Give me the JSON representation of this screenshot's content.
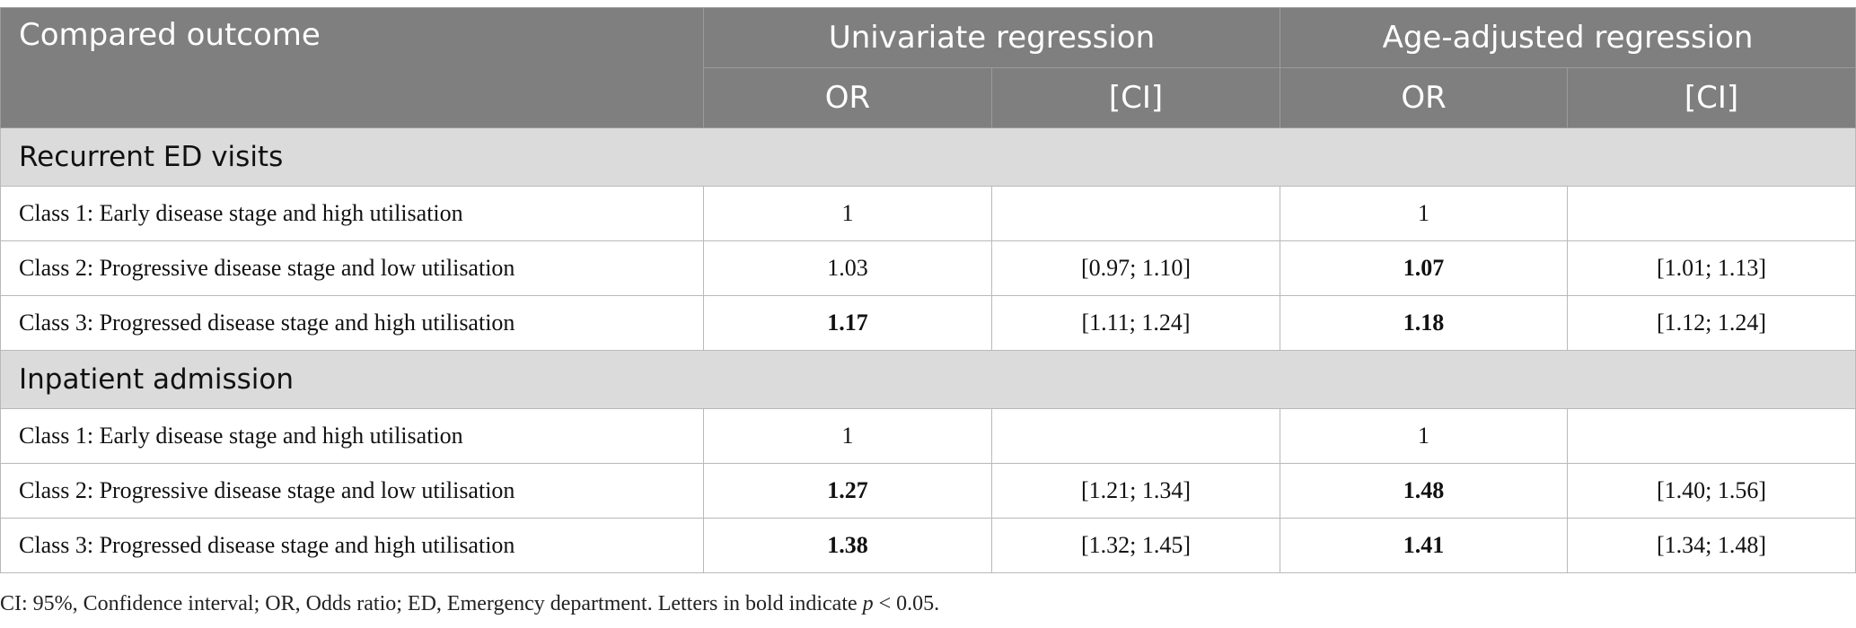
{
  "header": {
    "compared_outcome": "Compared outcome",
    "univariate": "Univariate regression",
    "age_adjusted": "Age-adjusted regression",
    "or_label": "OR",
    "ci_label": "[CI]"
  },
  "sections": [
    {
      "title": "Recurrent ED visits",
      "rows": [
        {
          "label": "Class 1: Early disease stage and high utilisation",
          "uni_or": "1",
          "uni_ci": "",
          "adj_or": "1",
          "adj_ci": ""
        },
        {
          "label": "Class 2: Progressive disease stage and low utilisation",
          "uni_or": "1.03",
          "uni_ci": "[0.97; 1.10]",
          "adj_or": "1.07",
          "adj_ci": "[1.01; 1.13]"
        },
        {
          "label": "Class 3: Progressed disease stage and high utilisation",
          "uni_or": "1.17",
          "uni_ci": "[1.11; 1.24]",
          "adj_or": "1.18",
          "adj_ci": "[1.12; 1.24]"
        }
      ]
    },
    {
      "title": "Inpatient admission",
      "rows": [
        {
          "label": "Class 1: Early disease stage and high utilisation",
          "uni_or": "1",
          "uni_ci": "",
          "adj_or": "1",
          "adj_ci": ""
        },
        {
          "label": "Class 2: Progressive disease stage and low utilisation",
          "uni_or": "1.27",
          "uni_ci": "[1.21; 1.34]",
          "adj_or": "1.48",
          "adj_ci": "[1.40; 1.56]"
        },
        {
          "label": "Class 3: Progressed disease stage and high utilisation",
          "uni_or": "1.38",
          "uni_ci": "[1.32; 1.45]",
          "adj_or": "1.41",
          "adj_ci": "[1.34; 1.48]"
        }
      ]
    }
  ],
  "footnote": {
    "text": "CI: 95%, Confidence interval; OR, Odds ratio; ED, Emergency department. Letters in bold indicate ",
    "p": "p",
    "tail": " < 0.05."
  }
}
